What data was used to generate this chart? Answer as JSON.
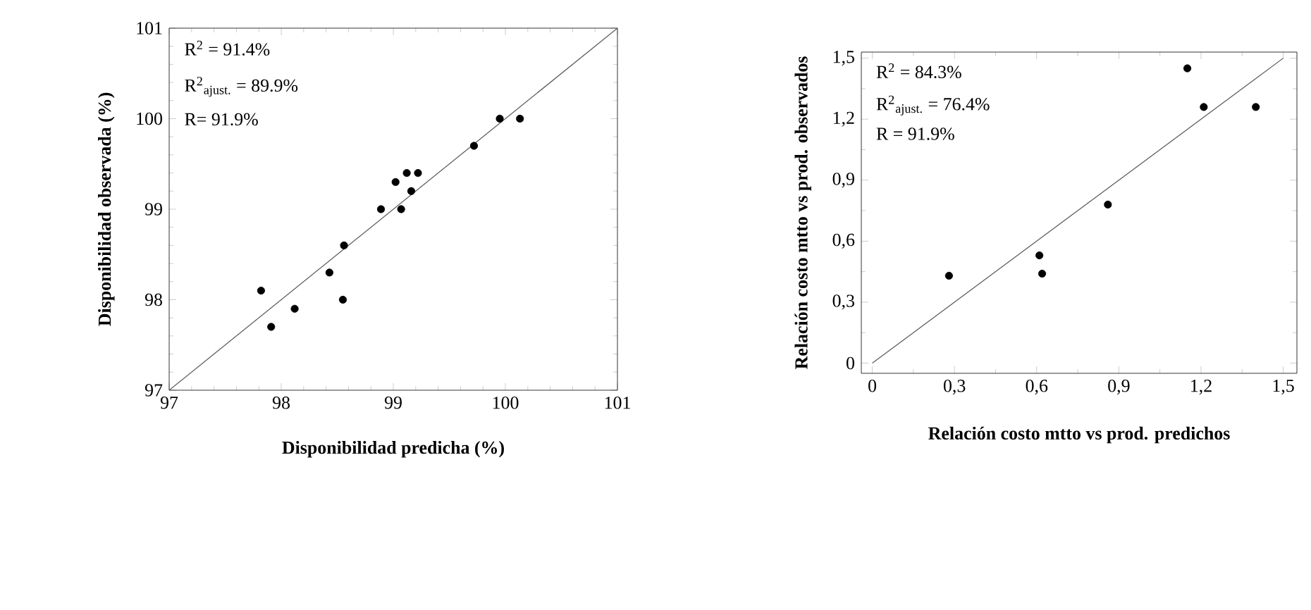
{
  "chart_data": [
    {
      "type": "scatter",
      "xlabel": "Disponibilidad predicha (%)",
      "ylabel": "Disponibilidad observada (%)",
      "xlim": [
        97,
        101
      ],
      "ylim": [
        97,
        101
      ],
      "xticks": [
        97,
        98,
        99,
        100,
        101
      ],
      "yticks": [
        97,
        98,
        99,
        100,
        101
      ],
      "annotations": [
        "R$^{2}$ = 91.4%",
        "R$^{2}$$_{ajust.}$ = 89.9%",
        "R= 91.9%"
      ],
      "series": [
        {
          "color": "#000000",
          "marker": "circle",
          "x": [
            97.82,
            97.91,
            98.12,
            98.43,
            98.55,
            98.56,
            98.89,
            99.02,
            99.07,
            99.12,
            99.16,
            99.22,
            99.72,
            99.95,
            100.13
          ],
          "values": [
            98.1,
            97.7,
            97.9,
            98.3,
            98.0,
            98.6,
            99.0,
            99.3,
            99.0,
            99.4,
            99.2,
            99.4,
            99.7,
            100.0,
            100.0
          ]
        },
        {
          "type": "line",
          "color": "#555555",
          "marker": "none",
          "x": [
            97,
            101
          ],
          "values": [
            97,
            101
          ]
        }
      ]
    },
    {
      "type": "scatter",
      "xlabel": "Relación costo mtto vs prod. predichos",
      "ylabel": "Relación costo mtto vs prod. observados",
      "xlim": [
        -0.04,
        1.55
      ],
      "ylim": [
        -0.05,
        1.53
      ],
      "xticks": [
        0,
        {
          "value": 0.3,
          "label": "0,3"
        },
        {
          "value": 0.6,
          "label": "0,6"
        },
        {
          "value": 0.9,
          "label": "0,9"
        },
        {
          "value": 1.2,
          "label": "1,2"
        },
        {
          "value": 1.5,
          "label": "1,5"
        }
      ],
      "yticks": [
        0,
        {
          "value": 0.3,
          "label": "0,3"
        },
        {
          "value": 0.6,
          "label": "0,6"
        },
        {
          "value": 0.9,
          "label": "0,9"
        },
        {
          "value": 1.2,
          "label": "1,2"
        },
        {
          "value": 1.5,
          "label": "1,5"
        }
      ],
      "annotations": [
        "R$^{2}$ = 84.3%",
        "R$^{2}$$_{ajust.}$ = 76.4%",
        "R = 91.9%"
      ],
      "series": [
        {
          "color": "#000000",
          "marker": "circle",
          "x": [
            0.28,
            0.61,
            0.62,
            0.86,
            1.15,
            1.21,
            1.4
          ],
          "values": [
            0.43,
            0.53,
            0.44,
            0.78,
            1.45,
            1.26,
            1.26
          ]
        },
        {
          "type": "line",
          "color": "#555555",
          "marker": "none",
          "x": [
            0,
            1.5
          ],
          "values": [
            0,
            1.5
          ]
        }
      ]
    }
  ]
}
